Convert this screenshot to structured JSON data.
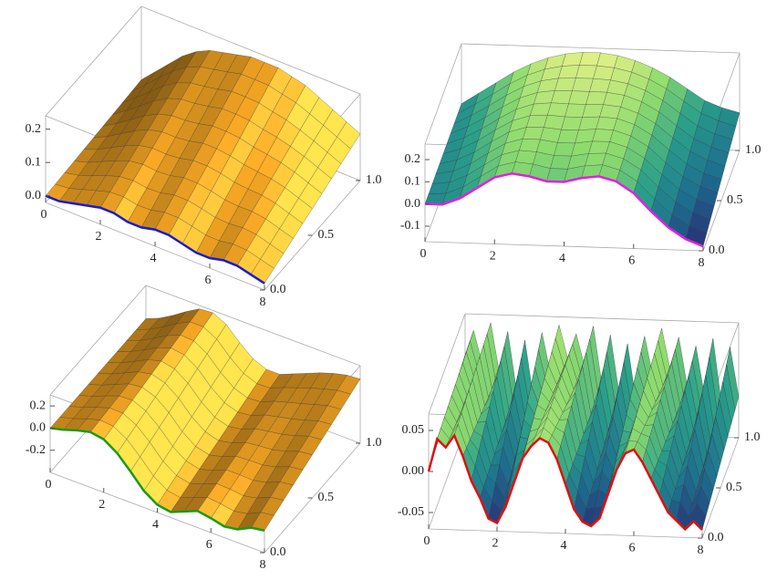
{
  "chart_data": [
    {
      "type": "surface3d",
      "x": [
        0,
        0.5,
        1,
        1.5,
        2,
        2.5,
        3,
        3.5,
        4,
        4.5,
        5,
        5.5,
        6,
        6.5,
        7,
        7.5,
        8
      ],
      "z_front": [
        0.0,
        0.0,
        0.01,
        0.02,
        0.03,
        0.03,
        0.02,
        0.02,
        0.03,
        0.03,
        0.02,
        0.01,
        0.01,
        0.02,
        0.02,
        0.01,
        0.0
      ],
      "z_back": [
        0.02,
        0.06,
        0.1,
        0.14,
        0.17,
        0.19,
        0.2,
        0.21,
        0.22,
        0.22,
        0.22,
        0.21,
        0.2,
        0.18,
        0.16,
        0.14,
        0.12
      ],
      "xlim": [
        0,
        8
      ],
      "ylim": [
        0,
        1
      ],
      "zlim": [
        -0.02,
        0.24
      ],
      "xticks": [
        0,
        2,
        4,
        6,
        8
      ],
      "yticks": [
        {
          "value": 0,
          "label": "0.0"
        },
        0.5,
        {
          "value": 1,
          "label": "1.0"
        }
      ],
      "zticks": [
        {
          "value": 0,
          "label": "0.0"
        },
        0.1,
        0.2
      ],
      "surface_color": "#f5a623",
      "edge_color": "#1a1ad0"
    },
    {
      "type": "surface3d",
      "x": [
        0,
        0.5,
        1,
        1.5,
        2,
        2.5,
        3,
        3.5,
        4,
        4.5,
        5,
        5.5,
        6,
        6.5,
        7,
        7.5,
        8
      ],
      "z_front": [
        0.0,
        0.0,
        0.03,
        0.08,
        0.13,
        0.15,
        0.14,
        0.12,
        0.12,
        0.14,
        0.15,
        0.13,
        0.08,
        0.0,
        -0.07,
        -0.12,
        -0.15
      ],
      "z_back": [
        0.0,
        0.05,
        0.1,
        0.15,
        0.19,
        0.22,
        0.24,
        0.25,
        0.25,
        0.24,
        0.22,
        0.19,
        0.15,
        0.1,
        0.05,
        0.02,
        0.0
      ],
      "xlim": [
        0,
        8
      ],
      "ylim": [
        0,
        1
      ],
      "zlim": [
        -0.17,
        0.27
      ],
      "xticks": [
        0,
        2,
        4,
        6,
        8
      ],
      "yticks": [
        {
          "value": 0,
          "label": "0.0"
        },
        0.5,
        {
          "value": 1,
          "label": "1.0"
        }
      ],
      "zticks": [
        -0.1,
        {
          "value": 0,
          "label": "0.0"
        },
        0.1,
        0.2
      ],
      "colormap": [
        "#2b1a6e",
        "#1d6f8f",
        "#2aa08a",
        "#8fdc6e",
        "#f6f58c"
      ],
      "edge_color": "#e020e0"
    },
    {
      "type": "surface3d",
      "x": [
        0,
        0.5,
        1,
        1.5,
        2,
        2.5,
        3,
        3.5,
        4,
        4.5,
        5,
        5.5,
        6,
        6.5,
        7,
        7.5,
        8
      ],
      "z_front": [
        0.0,
        0.03,
        0.07,
        0.1,
        0.08,
        0.0,
        -0.12,
        -0.25,
        -0.33,
        -0.35,
        -0.3,
        -0.25,
        -0.27,
        -0.3,
        -0.28,
        -0.22,
        -0.2
      ],
      "z_back": [
        0.0,
        0.05,
        0.12,
        0.2,
        0.27,
        0.28,
        0.22,
        0.1,
        0.0,
        -0.05,
        -0.05,
        0.0,
        0.05,
        0.1,
        0.14,
        0.17,
        0.18
      ],
      "xlim": [
        0,
        8
      ],
      "ylim": [
        0,
        1
      ],
      "zlim": [
        -0.4,
        0.3
      ],
      "xticks": [
        0,
        2,
        4,
        6,
        8
      ],
      "yticks": [
        {
          "value": 0,
          "label": "0.0"
        },
        0.5,
        {
          "value": 1,
          "label": "1.0"
        }
      ],
      "zticks": [
        -0.2,
        {
          "value": 0,
          "label": "0.0"
        },
        0.2
      ],
      "surface_color": "#f5a623",
      "edge_color": "#1a9a1a"
    },
    {
      "type": "surface3d",
      "x": [
        0,
        0.25,
        0.5,
        0.75,
        1,
        1.25,
        1.5,
        1.75,
        2,
        2.25,
        2.5,
        2.75,
        3,
        3.25,
        3.5,
        3.75,
        4,
        4.25,
        4.5,
        4.75,
        5,
        5.25,
        5.5,
        5.75,
        6,
        6.25,
        6.5,
        6.75,
        7,
        7.25,
        7.5,
        7.75,
        8
      ],
      "z_front": [
        0.0,
        0.04,
        0.03,
        0.045,
        0.02,
        -0.01,
        -0.03,
        -0.055,
        -0.06,
        -0.04,
        -0.01,
        0.02,
        0.035,
        0.045,
        0.04,
        0.02,
        -0.01,
        -0.04,
        -0.055,
        -0.06,
        -0.05,
        -0.02,
        0.01,
        0.03,
        0.035,
        0.02,
        0.0,
        -0.02,
        -0.04,
        -0.05,
        -0.06,
        -0.05,
        -0.06
      ],
      "z_back": [
        0.02,
        0.05,
        0.01,
        0.06,
        0.0,
        0.05,
        -0.02,
        0.04,
        -0.03,
        0.05,
        0.0,
        0.06,
        0.02,
        0.05,
        0.01,
        0.06,
        -0.01,
        0.05,
        -0.02,
        0.04,
        -0.03,
        0.05,
        0.0,
        0.06,
        0.01,
        0.05,
        -0.01,
        0.04,
        -0.02,
        0.05,
        -0.03,
        0.04,
        -0.02
      ],
      "xlim": [
        0,
        8
      ],
      "ylim": [
        0,
        1
      ],
      "zlim": [
        -0.07,
        0.07
      ],
      "xticks": [
        0,
        2,
        4,
        6,
        8
      ],
      "yticks": [
        {
          "value": 0,
          "label": "0.0"
        },
        0.5,
        {
          "value": 1,
          "label": "1.0"
        }
      ],
      "zticks": [
        -0.05,
        {
          "value": 0,
          "label": "0.00"
        },
        0.05
      ],
      "colormap": [
        "#2b1a6e",
        "#1d6f8f",
        "#2aa08a",
        "#8fdc6e",
        "#f6f58c"
      ],
      "edge_color": "#e01010"
    }
  ]
}
